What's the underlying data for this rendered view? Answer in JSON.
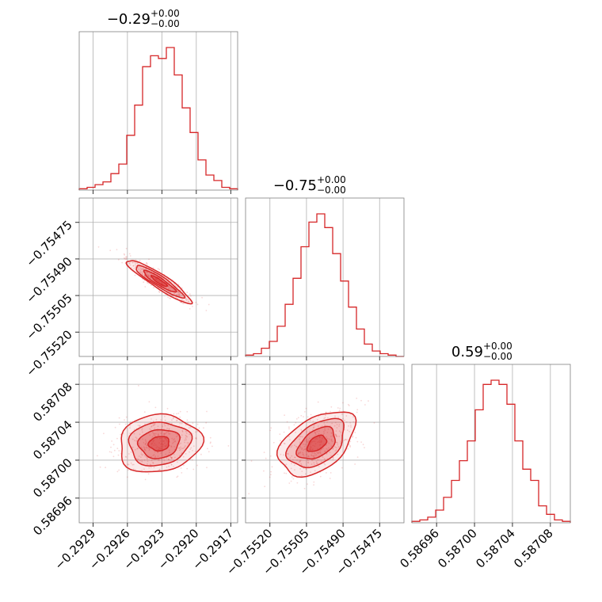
{
  "chart_data": {
    "type": "corner",
    "color": "#d62728",
    "grid": true,
    "parameters": [
      {
        "title": "−0.29",
        "plus": "+0.00",
        "minus": "−0.00",
        "range": [
          -0.29302,
          -0.29164
        ],
        "ticks": [
          -0.2929,
          -0.2926,
          -0.2923,
          -0.292,
          -0.2917
        ],
        "tick_labels": [
          "−0.2929",
          "−0.2926",
          "−0.2923",
          "−0.2920",
          "−0.2917"
        ],
        "hist_counts": [
          1,
          2,
          4,
          6,
          12,
          19,
          40,
          62,
          90,
          98,
          96,
          104,
          84,
          60,
          42,
          22,
          11,
          7,
          2,
          1
        ]
      },
      {
        "title": "−0.75",
        "plus": "+0.00",
        "minus": "−0.00",
        "range": [
          -0.7553,
          -0.75465
        ],
        "ticks": [
          -0.7552,
          -0.75505,
          -0.7549,
          -0.75475
        ],
        "tick_labels": [
          "−0.75520",
          "−0.75505",
          "−0.75490",
          "−0.75475"
        ],
        "hist_counts": [
          1,
          2,
          6,
          11,
          22,
          38,
          57,
          80,
          98,
          104,
          94,
          75,
          55,
          36,
          20,
          9,
          4,
          2,
          1,
          0
        ]
      },
      {
        "title": "0.59",
        "plus": "+0.00",
        "minus": "−0.00",
        "range": [
          0.586934,
          0.587101
        ],
        "ticks": [
          0.58696,
          0.587,
          0.58704,
          0.58708
        ],
        "tick_labels": [
          "0.58696",
          "0.58700",
          "0.58704",
          "0.58708"
        ],
        "hist_counts": [
          1,
          2,
          4,
          9,
          18,
          30,
          44,
          58,
          80,
          98,
          101,
          98,
          84,
          58,
          38,
          30,
          12,
          6,
          2,
          1
        ]
      }
    ],
    "contour_levels": [
      0.5,
      1.0,
      1.5,
      2.0
    ]
  }
}
